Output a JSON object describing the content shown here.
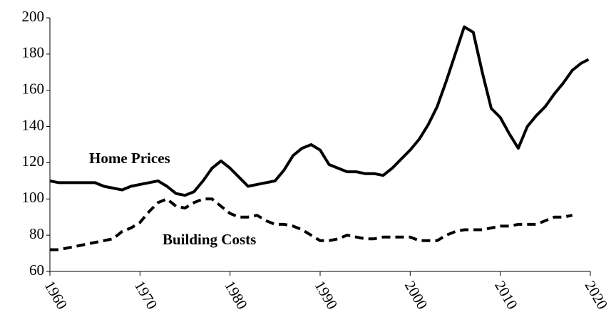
{
  "chart_data": {
    "type": "line",
    "annotations": [
      "Home Prices",
      "Building Costs"
    ],
    "series": [
      {
        "name": "Home Prices",
        "color": "#000000",
        "style": "solid",
        "x": [
          1960,
          1961,
          1962,
          1963,
          1964,
          1965,
          1966,
          1967,
          1968,
          1969,
          1970,
          1971,
          1972,
          1973,
          1974,
          1975,
          1976,
          1977,
          1978,
          1979,
          1980,
          1981,
          1982,
          1983,
          1984,
          1985,
          1986,
          1987,
          1988,
          1989,
          1990,
          1991,
          1992,
          1993,
          1994,
          1995,
          1996,
          1997,
          1998,
          1999,
          2000,
          2001,
          2002,
          2003,
          2004,
          2005,
          2006,
          2007,
          2008,
          2009,
          2010,
          2011,
          2012,
          2013,
          2014,
          2015,
          2016,
          2017,
          2018,
          2019,
          2019.8
        ],
        "values": [
          110,
          109,
          109,
          109,
          109,
          109,
          107,
          106,
          105,
          107,
          108,
          109,
          110,
          107,
          103,
          102,
          104,
          110,
          117,
          121,
          117,
          112,
          107,
          108,
          109,
          110,
          116,
          124,
          128,
          130,
          127,
          119,
          117,
          115,
          115,
          114,
          114,
          113,
          117,
          122,
          127,
          133,
          141,
          151,
          165,
          180,
          195,
          192,
          170,
          150,
          145,
          136,
          128,
          140,
          146,
          151,
          158,
          164,
          171,
          175,
          177
        ]
      },
      {
        "name": "Building Costs",
        "color": "#000000",
        "style": "dashed",
        "x": [
          1960,
          1961,
          1962,
          1963,
          1964,
          1965,
          1966,
          1967,
          1968,
          1969,
          1970,
          1971,
          1972,
          1973,
          1974,
          1975,
          1976,
          1977,
          1978,
          1979,
          1980,
          1981,
          1982,
          1983,
          1984,
          1985,
          1986,
          1987,
          1988,
          1989,
          1990,
          1991,
          1992,
          1993,
          1994,
          1995,
          1996,
          1997,
          1998,
          1999,
          2000,
          2001,
          2002,
          2003,
          2004,
          2005,
          2006,
          2007,
          2008,
          2009,
          2010,
          2011,
          2012,
          2013,
          2014,
          2015,
          2016,
          2017,
          2018
        ],
        "values": [
          72,
          72,
          73,
          74,
          75,
          76,
          77,
          78,
          82,
          84,
          87,
          93,
          98,
          100,
          96,
          95,
          98,
          100,
          100,
          96,
          92,
          90,
          90,
          91,
          88,
          86,
          86,
          85,
          83,
          80,
          77,
          77,
          78,
          80,
          79,
          78,
          78,
          79,
          79,
          79,
          79,
          77,
          77,
          77,
          80,
          82,
          83,
          83,
          83,
          84,
          85,
          85,
          86,
          86,
          86,
          88,
          90,
          90,
          91
        ]
      }
    ],
    "xlim": [
      1960,
      2020
    ],
    "xticks": [
      1960,
      1970,
      1980,
      1990,
      2000,
      2010,
      2020
    ],
    "ylim": [
      60,
      200
    ],
    "yticks": [
      60,
      80,
      100,
      120,
      140,
      160,
      180,
      200
    ],
    "grid": false
  }
}
